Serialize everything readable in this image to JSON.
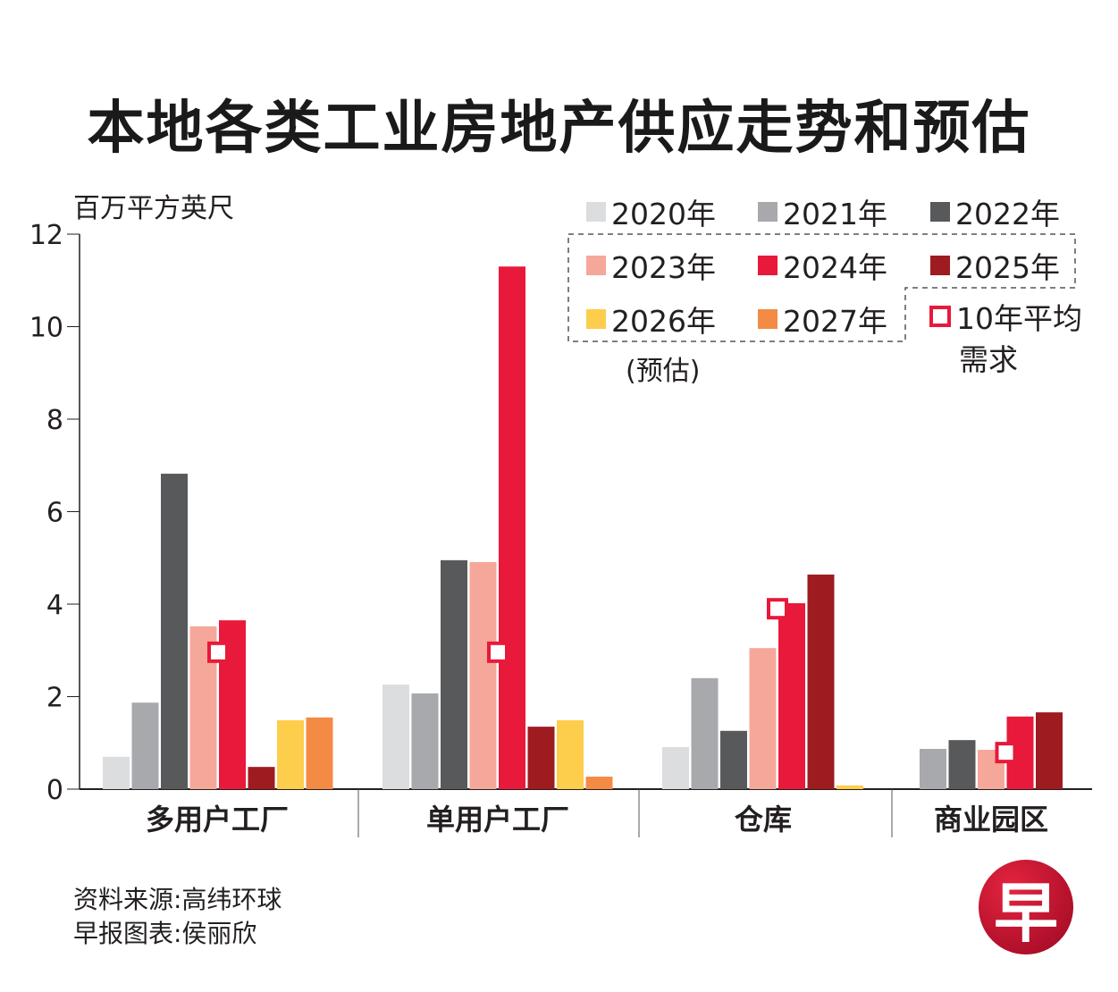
{
  "title": "本地各类工业房地产供应走势和预估",
  "unit_label": "百万平方英尺",
  "legend": {
    "items": [
      {
        "label": "2020年",
        "color": "#dcdddf"
      },
      {
        "label": "2021年",
        "color": "#a7a9ac"
      },
      {
        "label": "2022年",
        "color": "#58595b"
      },
      {
        "label": "2023年",
        "color": "#f5a89a"
      },
      {
        "label": "2024年",
        "color": "#e8193a"
      },
      {
        "label": "2025年",
        "color": "#9e1b20"
      },
      {
        "label": "2026年",
        "color": "#fdcd4c"
      },
      {
        "label": "2027年",
        "color": "#f48b45"
      }
    ],
    "avg_line1": "10年平均",
    "avg_line2": "需求",
    "forecast_note": "(预估)"
  },
  "credits": {
    "source": "资料来源:高纬环球",
    "author": "早报图表:侯丽欣"
  },
  "logo_char": "早",
  "chart_data": {
    "type": "bar",
    "title": "本地各类工业房地产供应走势和预估",
    "ylabel": "百万平方英尺",
    "xlabel": "",
    "ylim": [
      0,
      12
    ],
    "yticks": [
      0,
      2,
      4,
      6,
      8,
      10,
      12
    ],
    "grid": false,
    "legend_position": "top-right",
    "categories": [
      "多用户工厂",
      "单用户工厂",
      "仓库",
      "商业园区"
    ],
    "series": [
      {
        "name": "2020年",
        "values": [
          0.7,
          2.26,
          0.91,
          null
        ]
      },
      {
        "name": "2021年",
        "values": [
          1.87,
          2.07,
          2.4,
          0.87
        ]
      },
      {
        "name": "2022年",
        "values": [
          6.82,
          4.95,
          1.26,
          1.06
        ]
      },
      {
        "name": "2023年",
        "values": [
          3.52,
          4.91,
          3.05,
          0.85
        ]
      },
      {
        "name": "2024年",
        "values": [
          3.65,
          11.3,
          4.02,
          1.57
        ]
      },
      {
        "name": "2025年",
        "values": [
          0.48,
          1.35,
          4.64,
          1.66
        ]
      },
      {
        "name": "2026年",
        "values": [
          1.49,
          1.49,
          0.08,
          null
        ]
      },
      {
        "name": "2027年",
        "values": [
          1.55,
          0.27,
          null,
          null
        ]
      }
    ],
    "forecast_series": [
      "2023年",
      "2024年",
      "2025年",
      "2026年",
      "2027年"
    ],
    "ten_year_avg_demand": {
      "name": "10年平均需求",
      "values": [
        2.96,
        2.96,
        3.9,
        0.79
      ]
    }
  }
}
